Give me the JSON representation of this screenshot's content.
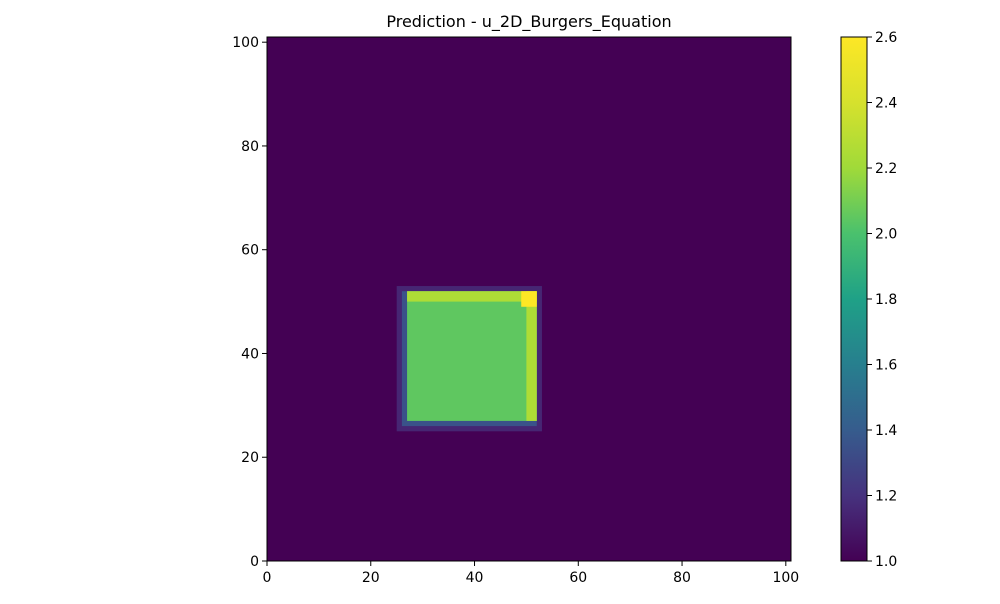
{
  "chart_data": {
    "type": "heatmap",
    "title": "Prediction - u_2D_Burgers_Equation",
    "xlabel": "",
    "ylabel": "",
    "xlim": [
      0,
      101
    ],
    "ylim": [
      0,
      101
    ],
    "xticks": [
      0,
      20,
      40,
      60,
      80,
      100
    ],
    "yticks": [
      0,
      20,
      40,
      60,
      80,
      100
    ],
    "colormap": "viridis",
    "colorbar": {
      "min": 1.0,
      "max": 2.6,
      "ticks": [
        "1.0",
        "1.2",
        "1.4",
        "1.6",
        "1.8",
        "2.0",
        "2.2",
        "2.4",
        "2.6"
      ]
    },
    "background_value": 1.0,
    "regions": [
      {
        "name": "outer halo",
        "x": [
          25,
          53
        ],
        "y": [
          25,
          53
        ],
        "value": 1.15
      },
      {
        "name": "inner halo",
        "x": [
          26,
          52
        ],
        "y": [
          26,
          52
        ],
        "value": 1.35
      },
      {
        "name": "square",
        "x": [
          27,
          52
        ],
        "y": [
          27,
          52
        ],
        "value": 2.05
      },
      {
        "name": "top rim",
        "x": [
          27,
          52
        ],
        "y": [
          50,
          52
        ],
        "value": 2.25
      },
      {
        "name": "right rim",
        "x": [
          50,
          52
        ],
        "y": [
          27,
          52
        ],
        "value": 2.25
      },
      {
        "name": "peak corner",
        "x": [
          49,
          52
        ],
        "y": [
          49,
          52
        ],
        "value": 2.6
      }
    ],
    "grid": false
  }
}
